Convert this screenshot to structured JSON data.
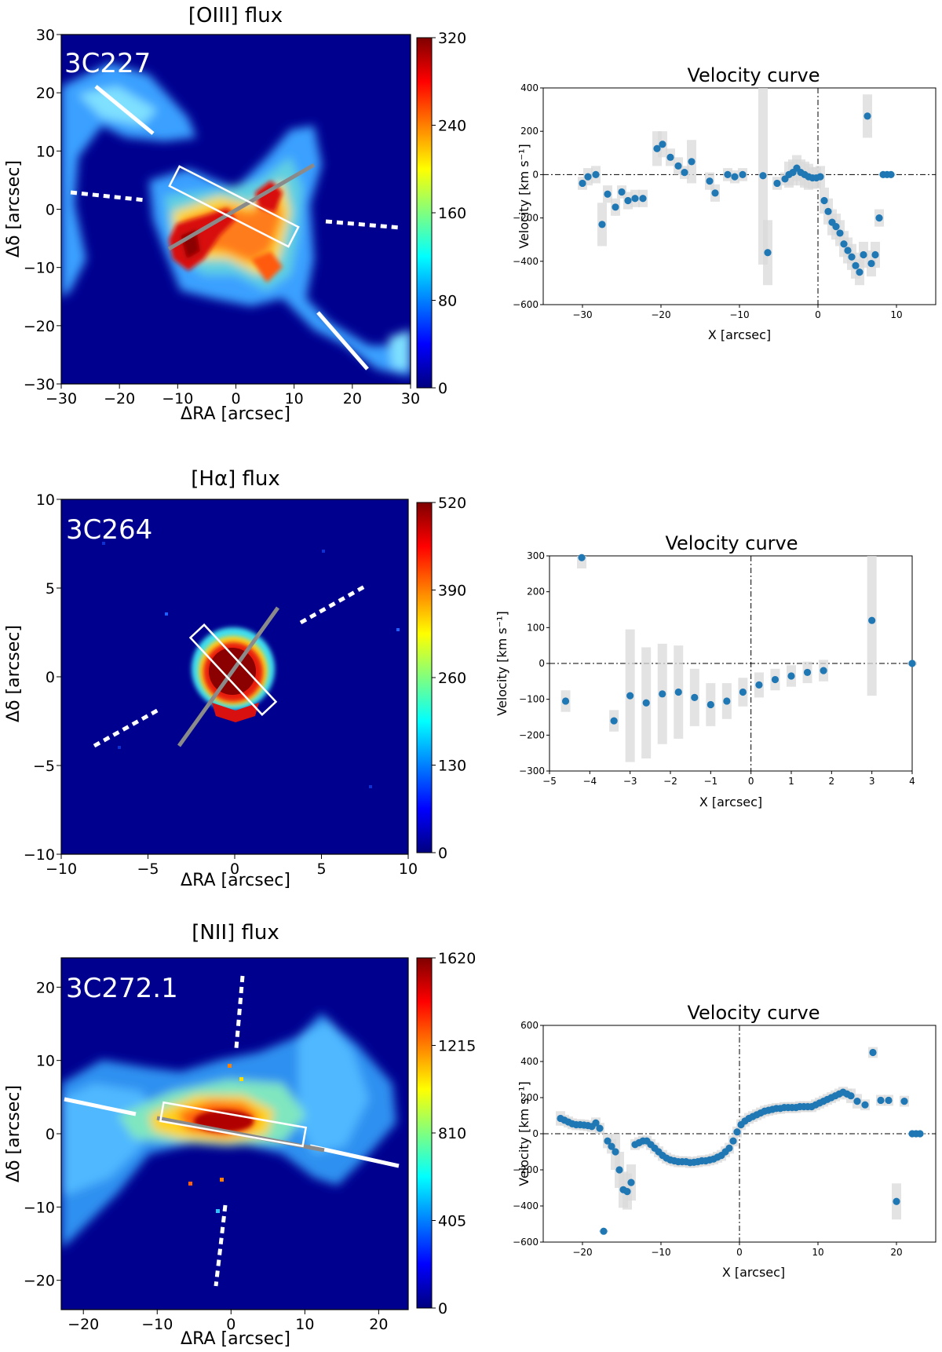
{
  "chart_data": [
    {
      "type": "heatmap",
      "source": "3C227",
      "title": "[OIII] flux",
      "xlabel": "ΔRA [arcsec]",
      "ylabel": "Δδ [arcsec]",
      "xlim": [
        -30,
        30
      ],
      "ylim": [
        -30,
        30
      ],
      "xticks": [
        "−30",
        "−20",
        "−10",
        "0",
        "10",
        "20",
        "30"
      ],
      "yticks": [
        "30",
        "20",
        "10",
        "0",
        "−10",
        "−20",
        "−30"
      ],
      "colorbar_ticks": [
        "320",
        "240",
        "160",
        "80",
        "0"
      ],
      "colorbar_range": [
        0,
        320
      ]
    },
    {
      "type": "scatter",
      "title": "Velocity curve",
      "xlabel": "X [arcsec]",
      "ylabel": "Velocity [km s⁻¹]",
      "xlim": [
        -35,
        15
      ],
      "ylim": [
        -600,
        400
      ],
      "xticks": [
        "−30",
        "−20",
        "−10",
        "0",
        "10"
      ],
      "yticks": [
        "400",
        "200",
        "0",
        "−200",
        "−400",
        "−600"
      ],
      "x": [
        -30,
        -29.3,
        -28.3,
        -27.5,
        -26.8,
        -25.8,
        -25,
        -24.2,
        -23.3,
        -22.3,
        -20.5,
        -19.8,
        -18.8,
        -17.8,
        -17,
        -16.1,
        -13.8,
        -13.1,
        -11.5,
        -10.6,
        -9.6,
        -7,
        -6.4,
        -5.2,
        -4.2,
        -3.7,
        -3.2,
        -2.7,
        -2.2,
        -1.7,
        -1.2,
        -0.7,
        -0.2,
        0.3,
        0.8,
        1.3,
        1.8,
        2.3,
        2.8,
        3.3,
        3.8,
        4.3,
        4.8,
        5.3,
        5.8,
        6.3,
        6.8,
        7.3,
        7.8,
        8.3,
        8.8,
        9.3
      ],
      "y": [
        -40,
        -10,
        0,
        -230,
        -90,
        -150,
        -80,
        -120,
        -110,
        -110,
        120,
        140,
        80,
        40,
        10,
        60,
        -30,
        -85,
        0,
        -10,
        0,
        -5,
        -360,
        -40,
        -20,
        0,
        10,
        30,
        10,
        0,
        -10,
        -15,
        -15,
        -10,
        -120,
        -170,
        -220,
        -240,
        -270,
        -320,
        -350,
        -380,
        -420,
        -450,
        -370,
        270,
        -410,
        -370,
        -200,
        0,
        0,
        0
      ],
      "errors": [
        30,
        40,
        40,
        100,
        40,
        40,
        30,
        40,
        40,
        40,
        80,
        60,
        40,
        40,
        30,
        100,
        40,
        40,
        30,
        30,
        30,
        410,
        150,
        30,
        30,
        60,
        60,
        60,
        60,
        60,
        60,
        50,
        50,
        50,
        60,
        60,
        60,
        60,
        60,
        60,
        60,
        60,
        60,
        60,
        60,
        100,
        60,
        60,
        40,
        5,
        5,
        5
      ]
    },
    {
      "type": "heatmap",
      "source": "3C264",
      "title": "[Hα] flux",
      "xlabel": "ΔRA [arcsec]",
      "ylabel": "Δδ [arcsec]",
      "xlim": [
        -10,
        10
      ],
      "ylim": [
        -10,
        10
      ],
      "xticks": [
        "−10",
        "−5",
        "0",
        "5",
        "10"
      ],
      "yticks": [
        "10",
        "5",
        "0",
        "−5",
        "−10"
      ],
      "colorbar_ticks": [
        "520",
        "390",
        "260",
        "130",
        "0"
      ],
      "colorbar_range": [
        0,
        520
      ]
    },
    {
      "type": "scatter",
      "title": "Velocity curve",
      "xlabel": "X [arcsec]",
      "ylabel": "Velocity [km s⁻¹]",
      "xlim": [
        -5,
        4
      ],
      "ylim": [
        -300,
        300
      ],
      "xticks": [
        "−5",
        "−4",
        "−3",
        "−2",
        "−1",
        "0",
        "1",
        "2",
        "3",
        "4"
      ],
      "yticks": [
        "300",
        "200",
        "100",
        "0",
        "−100",
        "−200",
        "−300"
      ],
      "x": [
        -4.6,
        -4.2,
        -3.4,
        -3.0,
        -2.6,
        -2.2,
        -1.8,
        -1.4,
        -1.0,
        -0.6,
        -0.2,
        0.2,
        0.6,
        1.0,
        1.4,
        1.8,
        3.0,
        4.0
      ],
      "y": [
        -105,
        295,
        -160,
        -90,
        -110,
        -85,
        -80,
        -95,
        -115,
        -105,
        -80,
        -60,
        -45,
        -35,
        -25,
        -20,
        120,
        0
      ],
      "errors": [
        30,
        30,
        30,
        185,
        155,
        140,
        130,
        80,
        60,
        50,
        40,
        35,
        30,
        30,
        30,
        30,
        210,
        5
      ]
    },
    {
      "type": "heatmap",
      "source": "3C272.1",
      "title": "[NII] flux",
      "xlabel": "ΔRA [arcsec]",
      "ylabel": "Δδ [arcsec]",
      "xlim": [
        -23,
        24
      ],
      "ylim": [
        -24,
        24
      ],
      "xticks": [
        "−20",
        "−10",
        "0",
        "10",
        "20"
      ],
      "yticks": [
        "20",
        "10",
        "0",
        "−10",
        "−20"
      ],
      "colorbar_ticks": [
        "1620",
        "1215",
        "810",
        "405",
        "0"
      ],
      "colorbar_range": [
        0,
        1620
      ]
    },
    {
      "type": "scatter",
      "title": "Velocity curve",
      "xlabel": "X [arcsec]",
      "ylabel": "Velocity [km s⁻¹]",
      "xlim": [
        -25,
        25
      ],
      "ylim": [
        -600,
        600
      ],
      "xticks": [
        "−20",
        "−10",
        "0",
        "10",
        "20"
      ],
      "yticks": [
        "600",
        "400",
        "200",
        "0",
        "−200",
        "−400",
        "−600"
      ],
      "x": [
        -22.8,
        -22.3,
        -21.8,
        -21.3,
        -20.8,
        -20.3,
        -19.8,
        -19.3,
        -18.8,
        -18.3,
        -17.8,
        -17.3,
        -16.8,
        -16.3,
        -15.8,
        -15.3,
        -14.8,
        -14.3,
        -13.8,
        -13.3,
        -12.8,
        -12.3,
        -11.8,
        -11.3,
        -10.8,
        -10.3,
        -9.8,
        -9.3,
        -8.8,
        -8.3,
        -7.8,
        -7.3,
        -6.8,
        -6.3,
        -5.8,
        -5.3,
        -4.8,
        -4.3,
        -3.8,
        -3.3,
        -2.8,
        -2.3,
        -1.8,
        -1.3,
        -0.8,
        -0.3,
        0.2,
        0.7,
        1.2,
        1.7,
        2.2,
        2.7,
        3.2,
        3.7,
        4.2,
        4.7,
        5.2,
        5.7,
        6.2,
        6.7,
        7.2,
        7.7,
        8.2,
        8.7,
        9.2,
        9.7,
        10.2,
        10.7,
        11.2,
        11.7,
        12.2,
        12.7,
        13.2,
        13.7,
        14.2,
        15.0,
        16.0,
        17.0,
        18.0,
        19.0,
        20.0,
        21.0,
        22.0,
        22.5,
        23.0
      ],
      "y": [
        85,
        75,
        65,
        55,
        50,
        50,
        48,
        45,
        40,
        60,
        30,
        -540,
        -40,
        -70,
        -100,
        -200,
        -310,
        -320,
        -270,
        -60,
        -50,
        -40,
        -40,
        -60,
        -80,
        -100,
        -120,
        -135,
        -145,
        -150,
        -155,
        -155,
        -155,
        -160,
        -158,
        -155,
        -150,
        -150,
        -145,
        -140,
        -130,
        -120,
        -100,
        -80,
        -40,
        10,
        50,
        70,
        85,
        95,
        105,
        115,
        125,
        130,
        135,
        140,
        140,
        145,
        145,
        145,
        145,
        150,
        150,
        150,
        150,
        160,
        170,
        180,
        190,
        200,
        210,
        220,
        230,
        220,
        210,
        180,
        160,
        450,
        185,
        185,
        -375,
        180,
        0,
        0,
        0
      ],
      "errors": [
        40,
        30,
        30,
        30,
        30,
        30,
        30,
        30,
        30,
        30,
        30,
        5,
        40,
        40,
        100,
        100,
        100,
        100,
        100,
        30,
        30,
        30,
        30,
        30,
        30,
        30,
        30,
        30,
        30,
        30,
        30,
        30,
        30,
        30,
        30,
        30,
        30,
        30,
        30,
        30,
        30,
        30,
        30,
        30,
        30,
        30,
        30,
        30,
        30,
        30,
        30,
        30,
        30,
        30,
        30,
        30,
        30,
        30,
        30,
        30,
        30,
        30,
        30,
        30,
        30,
        30,
        30,
        30,
        30,
        30,
        30,
        30,
        30,
        30,
        40,
        40,
        30,
        30,
        30,
        30,
        100,
        30,
        5,
        5,
        5
      ]
    }
  ]
}
